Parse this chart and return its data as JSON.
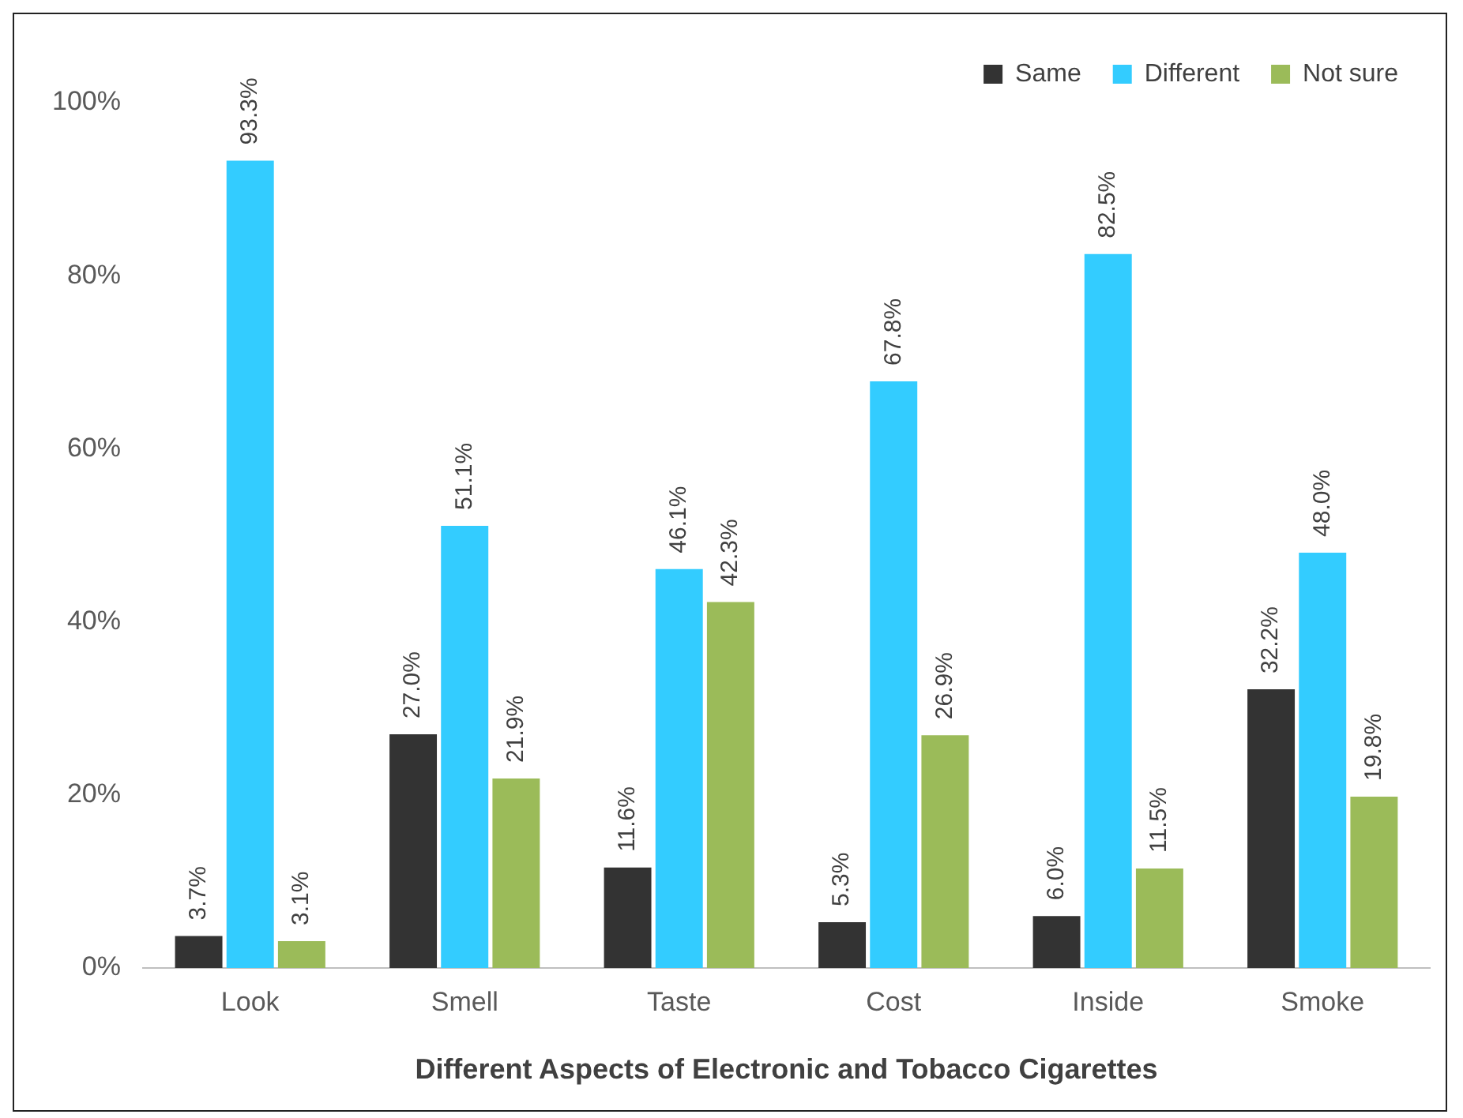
{
  "chart_data": {
    "type": "bar",
    "xlabel": "Different Aspects of Electronic and Tobacco Cigarettes",
    "categories": [
      "Look",
      "Smell",
      "Taste",
      "Cost",
      "Inside",
      "Smoke"
    ],
    "series": [
      {
        "name": "Same",
        "color": "#333333",
        "values": [
          3.7,
          27.0,
          11.6,
          5.3,
          6.0,
          32.2
        ],
        "value_labels": [
          "3.7%",
          "27.0%",
          "11.6%",
          "5.3%",
          "6.0%",
          "32.2%"
        ]
      },
      {
        "name": "Different",
        "color": "#33ccff",
        "values": [
          93.3,
          51.1,
          46.1,
          67.8,
          82.5,
          48.0
        ],
        "value_labels": [
          "93.3%",
          "51.1%",
          "46.1%",
          "67.8%",
          "82.5%",
          "48.0%"
        ]
      },
      {
        "name": "Not sure",
        "color": "#9bbb59",
        "values": [
          3.1,
          21.9,
          42.3,
          26.9,
          11.5,
          19.8
        ],
        "value_labels": [
          "3.1%",
          "21.9%",
          "42.3%",
          "26.9%",
          "11.5%",
          "19.8%"
        ]
      }
    ],
    "ylim": [
      0,
      100
    ],
    "yticks": [
      {
        "value": 0,
        "label": "0%"
      },
      {
        "value": 20,
        "label": "20%"
      },
      {
        "value": 40,
        "label": "40%"
      },
      {
        "value": 60,
        "label": "60%"
      },
      {
        "value": 80,
        "label": "80%"
      },
      {
        "value": 100,
        "label": "100%"
      }
    ],
    "grid": false,
    "legend": "top right"
  }
}
